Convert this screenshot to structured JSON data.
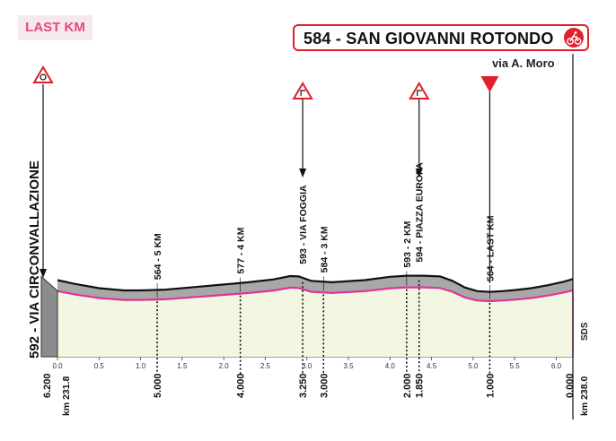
{
  "header": {
    "badge_label": "LAST KM",
    "finish_label": "584 - SAN GIOVANNI ROTONDO",
    "finish_icon": "cycling-finish-icon",
    "subtitle": "via A. Moro",
    "start_label": "592 - VIA CIRCONVALLAZIONE",
    "logo_text": "SDS"
  },
  "colors": {
    "profile_line": "#e0339a",
    "finish_red": "#e0202a",
    "profile_fill": "#f3f7e2",
    "road_band": "#a8a8a8"
  },
  "chart_data": {
    "type": "area",
    "title": "",
    "xlabel": "",
    "ylabel": "",
    "xlim": [
      0.0,
      6.2
    ],
    "x_ticks": [
      "0.0",
      "0.5",
      "1.0",
      "1.5",
      "2.0",
      "2.5",
      "3.0",
      "3.5",
      "4.0",
      "4.5",
      "5.0",
      "5.5",
      "6.0"
    ],
    "remaining_ticks": [
      {
        "x": 0.0,
        "label": "6.200"
      },
      {
        "x": 1.2,
        "label": "5.000"
      },
      {
        "x": 2.2,
        "label": "4.000"
      },
      {
        "x": 2.95,
        "label": "3.250"
      },
      {
        "x": 3.2,
        "label": "3.000"
      },
      {
        "x": 4.2,
        "label": "2.000"
      },
      {
        "x": 4.35,
        "label": "1.850"
      },
      {
        "x": 5.2,
        "label": "1.000"
      },
      {
        "x": 6.2,
        "label": "0.000"
      }
    ],
    "km_labels": {
      "start": "km 231.8",
      "end": "km 238.0"
    },
    "series": [
      {
        "x": [
          0.0,
          0.2,
          0.5,
          0.8,
          1.0,
          1.3,
          1.6,
          2.0,
          2.3,
          2.6,
          2.8,
          2.9,
          3.05,
          3.3,
          3.7,
          4.0,
          4.2,
          4.4,
          4.6,
          4.75,
          4.9,
          5.05,
          5.2,
          5.35,
          5.5,
          5.7,
          5.9,
          6.1,
          6.2
        ],
        "y": [
          0.72,
          0.62,
          0.5,
          0.44,
          0.44,
          0.46,
          0.52,
          0.6,
          0.66,
          0.74,
          0.83,
          0.82,
          0.7,
          0.66,
          0.72,
          0.81,
          0.84,
          0.84,
          0.82,
          0.7,
          0.52,
          0.42,
          0.4,
          0.42,
          0.45,
          0.5,
          0.58,
          0.68,
          0.75
        ]
      }
    ],
    "annotations": [
      {
        "x": 0.0,
        "text": "592 - VIA CIRCONVALLAZIONE",
        "kind": "start"
      },
      {
        "x": 1.2,
        "text": "564 - 5 KM",
        "kind": "km"
      },
      {
        "x": 2.2,
        "text": "577 - 4 KM",
        "kind": "km"
      },
      {
        "x": 2.95,
        "text": "593 - VIA FOGGIA",
        "kind": "turn"
      },
      {
        "x": 3.2,
        "text": "584 - 3 KM",
        "kind": "km"
      },
      {
        "x": 4.2,
        "text": "593 - 2 KM",
        "kind": "km"
      },
      {
        "x": 4.35,
        "text": "594 - PIAZZA EUROPA",
        "kind": "turn"
      },
      {
        "x": 5.2,
        "text": "564 - LAST KM",
        "kind": "flamme"
      }
    ]
  }
}
